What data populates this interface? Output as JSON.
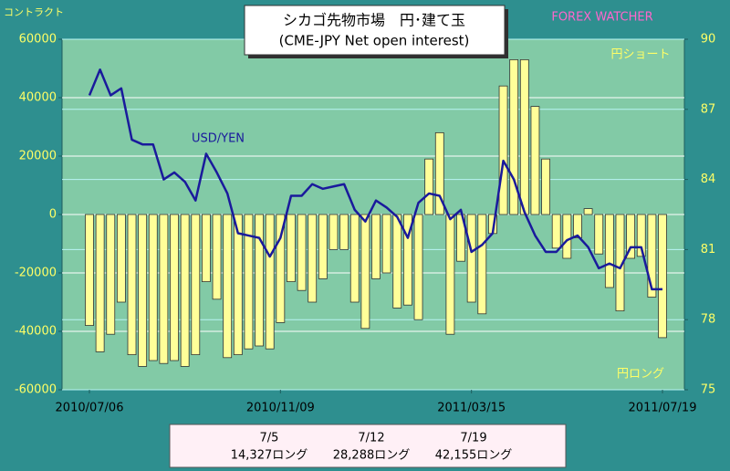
{
  "chart_data": {
    "type": "bar",
    "title": "シカゴ先物市場　円･建て玉",
    "subtitle": "(CME-JPY Net open interest)",
    "brand": "FOREX WATCHER",
    "y_label": "コントラクト",
    "annotations": [
      "円ショート",
      "円ロング"
    ],
    "categories": [
      "2010/07/06",
      null,
      null,
      null,
      null,
      null,
      null,
      null,
      null,
      null,
      null,
      null,
      null,
      null,
      null,
      null,
      null,
      null,
      "2010/11/09",
      null,
      null,
      null,
      null,
      null,
      null,
      null,
      null,
      null,
      null,
      null,
      null,
      null,
      null,
      null,
      null,
      null,
      "2011/03/15",
      null,
      null,
      null,
      null,
      null,
      null,
      null,
      null,
      null,
      null,
      null,
      null,
      null,
      null,
      null,
      null,
      null,
      "2011/07/19"
    ],
    "series": [
      {
        "color": "#ffff99",
        "values": [
          -38000,
          -47000,
          -41000,
          -30000,
          -48000,
          -52000,
          -50000,
          -51000,
          -50000,
          -52000,
          -48000,
          -23000,
          -29000,
          -49000,
          -48000,
          -46000,
          -45000,
          -46000,
          -37000,
          -23000,
          -26000,
          -30000,
          -22000,
          -12000,
          -12000,
          -30000,
          -39000,
          -22000,
          -20000,
          -32000,
          -31000,
          -36000,
          19000,
          28000,
          -41000,
          -16000,
          -30000,
          -34000,
          -6500,
          44000,
          53000,
          53000,
          37000,
          19000,
          -11500,
          -15000,
          -8000,
          2000,
          -13500,
          -25000,
          -33000,
          -15000,
          -14327,
          -28288,
          -42155
        ]
      },
      {
        "name": "USD/YEN",
        "type": "line",
        "axis": "y2",
        "color": "#1a1a9c",
        "values": [
          87.6,
          88.7,
          87.6,
          87.9,
          85.7,
          85.5,
          85.5,
          84.0,
          84.3,
          83.9,
          83.1,
          85.1,
          84.3,
          83.4,
          81.7,
          81.6,
          81.5,
          80.7,
          81.5,
          83.3,
          83.3,
          83.8,
          83.6,
          83.7,
          83.8,
          82.7,
          82.2,
          83.1,
          82.8,
          82.4,
          81.5,
          83.0,
          83.4,
          83.3,
          82.3,
          82.7,
          80.9,
          81.2,
          81.7,
          84.8,
          84.0,
          82.6,
          81.6,
          80.9,
          80.9,
          81.4,
          81.6,
          81.1,
          80.2,
          80.4,
          80.2,
          81.1,
          81.1,
          79.3,
          79.3
        ]
      }
    ],
    "ylim": [
      -60000,
      60000
    ],
    "yticks": [
      -60000,
      -40000,
      -20000,
      0,
      20000,
      40000,
      60000
    ],
    "y2lim": [
      75,
      90
    ],
    "y2ticks": [
      75,
      78,
      81,
      84,
      87,
      90
    ],
    "grid": true,
    "notes": [
      {
        "date": "7/5",
        "label": "14,327ロング"
      },
      {
        "date": "7/12",
        "label": "28,288ロング"
      },
      {
        "date": "7/19",
        "label": "42,155ロング"
      }
    ]
  }
}
